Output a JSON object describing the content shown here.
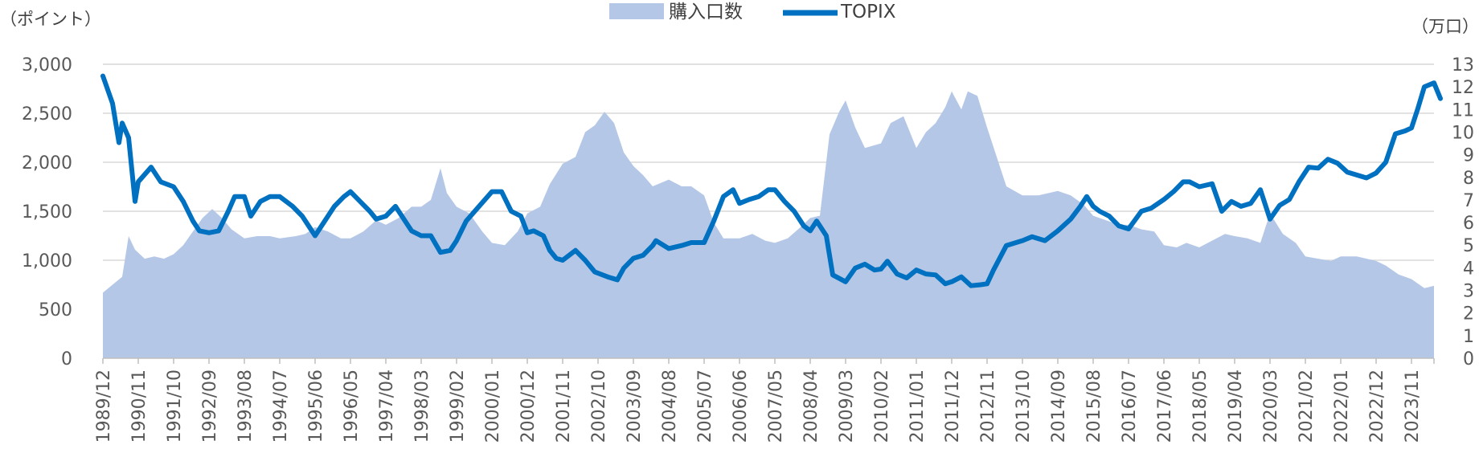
{
  "chart_data": {
    "type": "line",
    "title": "",
    "y_left_unit": "（ポイント）",
    "y_right_unit": "（万口）",
    "left_ticks": [
      "0",
      "500",
      "1,000",
      "1,500",
      "2,000",
      "2,500",
      "3,000"
    ],
    "left_ylim": [
      0,
      3000
    ],
    "right_ticks": [
      "0",
      "1",
      "2",
      "3",
      "4",
      "5",
      "6",
      "7",
      "8",
      "9",
      "10",
      "11",
      "12",
      "13"
    ],
    "right_ylim": [
      0,
      13
    ],
    "x_tick_labels": [
      "1989/12",
      "1990/11",
      "1991/10",
      "1992/09",
      "1993/08",
      "1994/07",
      "1995/06",
      "1996/05",
      "1997/04",
      "1998/03",
      "1999/02",
      "2000/01",
      "2000/12",
      "2001/11",
      "2002/10",
      "2003/09",
      "2004/08",
      "2005/07",
      "2006/06",
      "2007/05",
      "2008/04",
      "2009/03",
      "2010/02",
      "2011/01",
      "2011/12",
      "2012/11",
      "2013/10",
      "2014/09",
      "2015/08",
      "2016/07",
      "2017/06",
      "2018/05",
      "2019/04",
      "2020/03",
      "2021/02",
      "2022/01",
      "2022/12",
      "2023/11"
    ],
    "x_range": [
      "1989/12",
      "2024/06"
    ],
    "grid": true,
    "legend_position": "top-center",
    "series": [
      {
        "name": "購入口数",
        "axis": "right",
        "kind": "area",
        "color": "#b4c7e7",
        "points": [
          [
            "1989/12",
            2.9
          ],
          [
            "1990/06",
            3.6
          ],
          [
            "1990/08",
            5.4
          ],
          [
            "1990/10",
            4.8
          ],
          [
            "1991/01",
            4.4
          ],
          [
            "1991/04",
            4.5
          ],
          [
            "1991/07",
            4.4
          ],
          [
            "1991/10",
            4.6
          ],
          [
            "1992/01",
            5.0
          ],
          [
            "1992/04",
            5.6
          ],
          [
            "1992/07",
            6.2
          ],
          [
            "1992/10",
            6.6
          ],
          [
            "1993/01",
            6.2
          ],
          [
            "1993/04",
            5.7
          ],
          [
            "1993/08",
            5.3
          ],
          [
            "1993/12",
            5.4
          ],
          [
            "1994/04",
            5.4
          ],
          [
            "1994/07",
            5.3
          ],
          [
            "1994/12",
            5.4
          ],
          [
            "1995/03",
            5.5
          ],
          [
            "1995/06",
            5.8
          ],
          [
            "1995/10",
            5.6
          ],
          [
            "1996/02",
            5.3
          ],
          [
            "1996/05",
            5.3
          ],
          [
            "1996/09",
            5.6
          ],
          [
            "1997/01",
            6.1
          ],
          [
            "1997/04",
            5.9
          ],
          [
            "1997/08",
            6.2
          ],
          [
            "1997/12",
            6.7
          ],
          [
            "1998/03",
            6.7
          ],
          [
            "1998/06",
            7.0
          ],
          [
            "1998/09",
            8.4
          ],
          [
            "1998/11",
            7.3
          ],
          [
            "1999/02",
            6.7
          ],
          [
            "1999/06",
            6.4
          ],
          [
            "1999/10",
            5.6
          ],
          [
            "2000/01",
            5.1
          ],
          [
            "2000/05",
            5.0
          ],
          [
            "2000/09",
            5.6
          ],
          [
            "2000/12",
            6.4
          ],
          [
            "2001/04",
            6.7
          ],
          [
            "2001/07",
            7.7
          ],
          [
            "2001/11",
            8.6
          ],
          [
            "2002/03",
            8.9
          ],
          [
            "2002/06",
            10.0
          ],
          [
            "2002/09",
            10.3
          ],
          [
            "2002/12",
            10.9
          ],
          [
            "2003/03",
            10.4
          ],
          [
            "2003/06",
            9.1
          ],
          [
            "2003/09",
            8.5
          ],
          [
            "2003/12",
            8.1
          ],
          [
            "2004/03",
            7.6
          ],
          [
            "2004/08",
            7.9
          ],
          [
            "2004/12",
            7.6
          ],
          [
            "2005/03",
            7.6
          ],
          [
            "2005/07",
            7.2
          ],
          [
            "2005/10",
            6.0
          ],
          [
            "2006/01",
            5.3
          ],
          [
            "2006/06",
            5.3
          ],
          [
            "2006/10",
            5.5
          ],
          [
            "2007/02",
            5.2
          ],
          [
            "2007/05",
            5.1
          ],
          [
            "2007/09",
            5.3
          ],
          [
            "2008/01",
            5.8
          ],
          [
            "2008/04",
            6.2
          ],
          [
            "2008/07",
            6.3
          ],
          [
            "2008/10",
            9.9
          ],
          [
            "2009/01",
            10.9
          ],
          [
            "2009/03",
            11.4
          ],
          [
            "2009/06",
            10.2
          ],
          [
            "2009/09",
            9.3
          ],
          [
            "2010/02",
            9.5
          ],
          [
            "2010/05",
            10.4
          ],
          [
            "2010/09",
            10.7
          ],
          [
            "2011/01",
            9.3
          ],
          [
            "2011/04",
            10.0
          ],
          [
            "2011/07",
            10.4
          ],
          [
            "2011/10",
            11.1
          ],
          [
            "2011/12",
            11.8
          ],
          [
            "2012/03",
            11.0
          ],
          [
            "2012/05",
            11.8
          ],
          [
            "2012/08",
            11.6
          ],
          [
            "2012/11",
            10.2
          ],
          [
            "2013/02",
            8.9
          ],
          [
            "2013/05",
            7.6
          ],
          [
            "2013/10",
            7.2
          ],
          [
            "2014/03",
            7.2
          ],
          [
            "2014/09",
            7.4
          ],
          [
            "2015/01",
            7.2
          ],
          [
            "2015/05",
            6.8
          ],
          [
            "2015/08",
            6.3
          ],
          [
            "2015/12",
            6.1
          ],
          [
            "2016/04",
            5.9
          ],
          [
            "2016/07",
            5.9
          ],
          [
            "2016/11",
            5.7
          ],
          [
            "2017/03",
            5.6
          ],
          [
            "2017/06",
            5.0
          ],
          [
            "2017/10",
            4.9
          ],
          [
            "2018/01",
            5.1
          ],
          [
            "2018/05",
            4.9
          ],
          [
            "2018/09",
            5.2
          ],
          [
            "2019/01",
            5.5
          ],
          [
            "2019/04",
            5.4
          ],
          [
            "2019/08",
            5.3
          ],
          [
            "2019/12",
            5.1
          ],
          [
            "2020/03",
            6.4
          ],
          [
            "2020/07",
            5.5
          ],
          [
            "2020/11",
            5.1
          ],
          [
            "2021/02",
            4.5
          ],
          [
            "2021/06",
            4.4
          ],
          [
            "2021/10",
            4.3
          ],
          [
            "2022/01",
            4.5
          ],
          [
            "2022/06",
            4.5
          ],
          [
            "2022/12",
            4.3
          ],
          [
            "2023/03",
            4.1
          ],
          [
            "2023/07",
            3.7
          ],
          [
            "2023/11",
            3.5
          ],
          [
            "2024/03",
            3.1
          ],
          [
            "2024/06",
            3.2
          ]
        ]
      },
      {
        "name": "TOPIX",
        "axis": "left",
        "kind": "line",
        "color": "#0070c0",
        "points": [
          [
            "1989/12",
            2880
          ],
          [
            "1990/03",
            2600
          ],
          [
            "1990/05",
            2200
          ],
          [
            "1990/06",
            2400
          ],
          [
            "1990/08",
            2250
          ],
          [
            "1990/10",
            1600
          ],
          [
            "1990/11",
            1800
          ],
          [
            "1991/03",
            1950
          ],
          [
            "1991/06",
            1800
          ],
          [
            "1991/10",
            1750
          ],
          [
            "1992/01",
            1600
          ],
          [
            "1992/04",
            1400
          ],
          [
            "1992/06",
            1300
          ],
          [
            "1992/09",
            1280
          ],
          [
            "1992/12",
            1300
          ],
          [
            "1993/03",
            1500
          ],
          [
            "1993/05",
            1650
          ],
          [
            "1993/08",
            1650
          ],
          [
            "1993/10",
            1450
          ],
          [
            "1994/01",
            1600
          ],
          [
            "1994/04",
            1650
          ],
          [
            "1994/07",
            1650
          ],
          [
            "1994/11",
            1550
          ],
          [
            "1995/02",
            1450
          ],
          [
            "1995/06",
            1250
          ],
          [
            "1995/09",
            1400
          ],
          [
            "1995/12",
            1550
          ],
          [
            "1996/03",
            1650
          ],
          [
            "1996/05",
            1700
          ],
          [
            "1996/08",
            1600
          ],
          [
            "1996/11",
            1500
          ],
          [
            "1997/01",
            1420
          ],
          [
            "1997/04",
            1450
          ],
          [
            "1997/07",
            1550
          ],
          [
            "1997/09",
            1450
          ],
          [
            "1997/12",
            1300
          ],
          [
            "1998/03",
            1250
          ],
          [
            "1998/06",
            1250
          ],
          [
            "1998/09",
            1080
          ],
          [
            "1998/12",
            1100
          ],
          [
            "1999/02",
            1200
          ],
          [
            "1999/05",
            1400
          ],
          [
            "1999/09",
            1550
          ],
          [
            "2000/01",
            1700
          ],
          [
            "2000/04",
            1700
          ],
          [
            "2000/07",
            1500
          ],
          [
            "2000/10",
            1450
          ],
          [
            "2000/12",
            1280
          ],
          [
            "2001/02",
            1300
          ],
          [
            "2001/05",
            1250
          ],
          [
            "2001/07",
            1100
          ],
          [
            "2001/09",
            1020
          ],
          [
            "2001/11",
            1000
          ],
          [
            "2002/03",
            1100
          ],
          [
            "2002/06",
            1000
          ],
          [
            "2002/09",
            880
          ],
          [
            "2003/01",
            830
          ],
          [
            "2003/04",
            800
          ],
          [
            "2003/06",
            920
          ],
          [
            "2003/09",
            1020
          ],
          [
            "2003/12",
            1050
          ],
          [
            "2004/03",
            1150
          ],
          [
            "2004/04",
            1200
          ],
          [
            "2004/08",
            1120
          ],
          [
            "2004/12",
            1150
          ],
          [
            "2005/03",
            1180
          ],
          [
            "2005/07",
            1180
          ],
          [
            "2005/10",
            1400
          ],
          [
            "2006/01",
            1650
          ],
          [
            "2006/04",
            1720
          ],
          [
            "2006/06",
            1580
          ],
          [
            "2006/09",
            1620
          ],
          [
            "2006/12",
            1650
          ],
          [
            "2007/03",
            1720
          ],
          [
            "2007/05",
            1720
          ],
          [
            "2007/08",
            1600
          ],
          [
            "2007/11",
            1500
          ],
          [
            "2008/02",
            1350
          ],
          [
            "2008/04",
            1300
          ],
          [
            "2008/06",
            1400
          ],
          [
            "2008/09",
            1250
          ],
          [
            "2008/11",
            850
          ],
          [
            "2009/03",
            780
          ],
          [
            "2009/06",
            920
          ],
          [
            "2009/09",
            960
          ],
          [
            "2009/12",
            900
          ],
          [
            "2010/02",
            910
          ],
          [
            "2010/04",
            990
          ],
          [
            "2010/07",
            860
          ],
          [
            "2010/10",
            820
          ],
          [
            "2011/01",
            900
          ],
          [
            "2011/04",
            860
          ],
          [
            "2011/07",
            850
          ],
          [
            "2011/10",
            760
          ],
          [
            "2011/12",
            780
          ],
          [
            "2012/03",
            830
          ],
          [
            "2012/06",
            740
          ],
          [
            "2012/09",
            750
          ],
          [
            "2012/11",
            760
          ],
          [
            "2013/01",
            900
          ],
          [
            "2013/05",
            1150
          ],
          [
            "2013/10",
            1200
          ],
          [
            "2014/01",
            1240
          ],
          [
            "2014/05",
            1200
          ],
          [
            "2014/09",
            1300
          ],
          [
            "2015/01",
            1420
          ],
          [
            "2015/04",
            1550
          ],
          [
            "2015/06",
            1650
          ],
          [
            "2015/08",
            1550
          ],
          [
            "2015/10",
            1500
          ],
          [
            "2016/01",
            1450
          ],
          [
            "2016/04",
            1350
          ],
          [
            "2016/07",
            1320
          ],
          [
            "2016/11",
            1500
          ],
          [
            "2017/02",
            1530
          ],
          [
            "2017/06",
            1620
          ],
          [
            "2017/09",
            1700
          ],
          [
            "2017/12",
            1800
          ],
          [
            "2018/02",
            1800
          ],
          [
            "2018/05",
            1750
          ],
          [
            "2018/09",
            1780
          ],
          [
            "2018/12",
            1500
          ],
          [
            "2019/03",
            1600
          ],
          [
            "2019/06",
            1550
          ],
          [
            "2019/09",
            1580
          ],
          [
            "2019/12",
            1720
          ],
          [
            "2020/03",
            1420
          ],
          [
            "2020/06",
            1560
          ],
          [
            "2020/09",
            1620
          ],
          [
            "2020/12",
            1800
          ],
          [
            "2021/03",
            1950
          ],
          [
            "2021/06",
            1940
          ],
          [
            "2021/09",
            2030
          ],
          [
            "2021/12",
            1990
          ],
          [
            "2022/03",
            1900
          ],
          [
            "2022/06",
            1870
          ],
          [
            "2022/09",
            1840
          ],
          [
            "2022/12",
            1890
          ],
          [
            "2023/03",
            2000
          ],
          [
            "2023/06",
            2290
          ],
          [
            "2023/09",
            2320
          ],
          [
            "2023/11",
            2350
          ],
          [
            "2024/01",
            2550
          ],
          [
            "2024/03",
            2770
          ],
          [
            "2024/06",
            2810
          ],
          [
            "2024/08",
            2650
          ]
        ]
      }
    ]
  }
}
